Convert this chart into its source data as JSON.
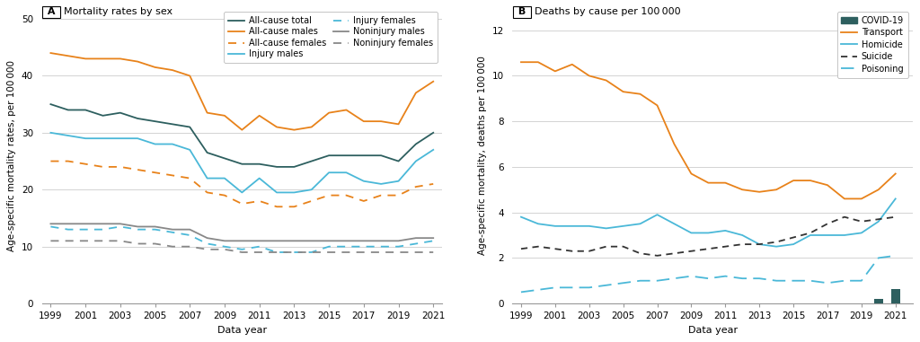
{
  "years": [
    1999,
    2000,
    2001,
    2002,
    2003,
    2004,
    2005,
    2006,
    2007,
    2008,
    2009,
    2010,
    2011,
    2012,
    2013,
    2014,
    2015,
    2016,
    2017,
    2018,
    2019,
    2020,
    2021
  ],
  "panel_A": {
    "title": "Mortality rates by sex",
    "label": "A",
    "ylabel": "Age-specific mortality rates, per 100 000",
    "xlabel": "Data year",
    "ylim": [
      0,
      52
    ],
    "yticks": [
      0,
      10,
      20,
      30,
      40,
      50
    ],
    "xticks": [
      1999,
      2001,
      2003,
      2005,
      2007,
      2009,
      2011,
      2013,
      2015,
      2017,
      2019,
      2021
    ],
    "all_cause_total": [
      35.0,
      34.0,
      34.0,
      33.0,
      33.5,
      32.5,
      32.0,
      31.5,
      31.0,
      26.5,
      25.5,
      24.5,
      24.5,
      24.0,
      24.0,
      25.0,
      26.0,
      26.0,
      26.0,
      26.0,
      25.0,
      28.0,
      30.0
    ],
    "all_cause_males": [
      44.0,
      43.5,
      43.0,
      43.0,
      43.0,
      42.5,
      41.5,
      41.0,
      40.0,
      33.5,
      33.0,
      30.5,
      33.0,
      31.0,
      30.5,
      31.0,
      33.5,
      34.0,
      32.0,
      32.0,
      31.5,
      37.0,
      39.0
    ],
    "all_cause_females": [
      25.0,
      25.0,
      24.5,
      24.0,
      24.0,
      23.5,
      23.0,
      22.5,
      22.0,
      19.5,
      19.0,
      17.5,
      18.0,
      17.0,
      17.0,
      18.0,
      19.0,
      19.0,
      18.0,
      19.0,
      19.0,
      20.5,
      21.0
    ],
    "injury_males": [
      30.0,
      29.5,
      29.0,
      29.0,
      29.0,
      29.0,
      28.0,
      28.0,
      27.0,
      22.0,
      22.0,
      19.5,
      22.0,
      19.5,
      19.5,
      20.0,
      23.0,
      23.0,
      21.5,
      21.0,
      21.5,
      25.0,
      27.0
    ],
    "injury_females": [
      13.5,
      13.0,
      13.0,
      13.0,
      13.5,
      13.0,
      13.0,
      12.5,
      12.0,
      10.5,
      10.0,
      9.5,
      10.0,
      9.0,
      9.0,
      9.0,
      10.0,
      10.0,
      10.0,
      10.0,
      10.0,
      10.5,
      11.0
    ],
    "noninjury_males": [
      14.0,
      14.0,
      14.0,
      14.0,
      14.0,
      13.5,
      13.5,
      13.0,
      13.0,
      11.5,
      11.0,
      11.0,
      11.0,
      11.0,
      11.0,
      11.0,
      11.0,
      11.0,
      11.0,
      11.0,
      11.0,
      11.5,
      11.5
    ],
    "noninjury_females": [
      11.0,
      11.0,
      11.0,
      11.0,
      11.0,
      10.5,
      10.5,
      10.0,
      10.0,
      9.5,
      9.5,
      9.0,
      9.0,
      9.0,
      9.0,
      9.0,
      9.0,
      9.0,
      9.0,
      9.0,
      9.0,
      9.0,
      9.0
    ],
    "color_total": "#2d5f5f",
    "color_males_ac": "#e8821a",
    "color_females_ac": "#e8821a",
    "color_males_inj": "#4ab8d8",
    "color_females_inj": "#4ab8d8",
    "color_males_noinj": "#888888",
    "color_females_noinj": "#888888"
  },
  "panel_B": {
    "title": "Deaths by cause per 100 000",
    "label": "B",
    "ylabel": "Age-specific mortality, deaths per 100 000",
    "xlabel": "Data year",
    "ylim": [
      0,
      13
    ],
    "yticks": [
      0,
      2,
      4,
      6,
      8,
      10,
      12
    ],
    "xticks": [
      1999,
      2001,
      2003,
      2005,
      2007,
      2009,
      2011,
      2013,
      2015,
      2017,
      2019,
      2021
    ],
    "transport": [
      10.6,
      10.6,
      10.2,
      10.5,
      10.0,
      9.8,
      9.3,
      9.2,
      8.7,
      7.0,
      5.7,
      5.3,
      5.3,
      5.0,
      4.9,
      5.0,
      5.4,
      5.4,
      5.2,
      4.6,
      4.6,
      5.0,
      5.7
    ],
    "homicide": [
      3.8,
      3.5,
      3.4,
      3.4,
      3.4,
      3.3,
      3.4,
      3.5,
      3.9,
      3.5,
      3.1,
      3.1,
      3.2,
      3.0,
      2.6,
      2.5,
      2.6,
      3.0,
      3.0,
      3.0,
      3.1,
      3.6,
      4.6
    ],
    "suicide": [
      2.4,
      2.5,
      2.4,
      2.3,
      2.3,
      2.5,
      2.5,
      2.2,
      2.1,
      2.2,
      2.3,
      2.4,
      2.5,
      2.6,
      2.6,
      2.7,
      2.9,
      3.1,
      3.5,
      3.8,
      3.6,
      3.7,
      3.8
    ],
    "poisoning": [
      0.5,
      0.6,
      0.7,
      0.7,
      0.7,
      0.8,
      0.9,
      1.0,
      1.0,
      1.1,
      1.2,
      1.1,
      1.2,
      1.1,
      1.1,
      1.0,
      1.0,
      1.0,
      0.9,
      1.0,
      1.0,
      2.0,
      2.1
    ],
    "covid_years": [
      2020,
      2021
    ],
    "covid_vals": [
      0.22,
      0.65
    ],
    "color_transport": "#e8821a",
    "color_homicide": "#4ab8d8",
    "color_suicide": "#333333",
    "color_poisoning": "#4ab8d8",
    "color_covid": "#2d5f5f"
  }
}
